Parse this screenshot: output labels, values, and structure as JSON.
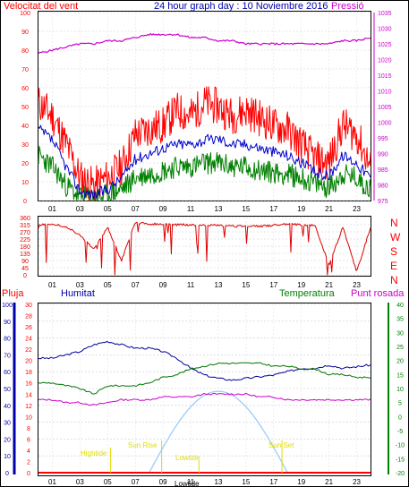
{
  "header": {
    "wind_label": "Velocitat del vent",
    "title": "24 hour graph day : 10 Noviembre 2016",
    "pressure_label": "Pressió"
  },
  "legend2": {
    "rain": "Pluja",
    "humidity": "Humitat",
    "temperature": "Temperatura",
    "dewpoint": "Punt rosada"
  },
  "compass": [
    "N",
    "W",
    "S",
    "E",
    "N"
  ],
  "colors": {
    "wind_max": "#ff0000",
    "wind_avg": "#0000cc",
    "wind_min": "#008000",
    "pressure": "#cc00cc",
    "direction": "#dd0000",
    "humidity": "#000099",
    "temperature": "#007700",
    "dewpoint": "#cc00cc",
    "sun_curve": "#99ccff",
    "tide": "#dddd00",
    "axis_green": "#008000",
    "axis_blue": "#0000aa"
  },
  "time_ticks": [
    "01",
    "03",
    "05",
    "07",
    "09",
    "11",
    "13",
    "15",
    "17",
    "19",
    "21",
    "23"
  ],
  "tide_labels": {
    "high_tide": "Hightide",
    "sun_rise": "Sun Rise",
    "low_tide_1": "Lowtide",
    "low_tide_2": "Lowtide",
    "sun_set": "Sun Set"
  },
  "chart_data": [
    {
      "type": "line",
      "title": "24 hour graph day : 10 Noviembre 2016",
      "x_hours": [
        0,
        1,
        2,
        3,
        4,
        5,
        6,
        7,
        8,
        9,
        10,
        11,
        12,
        13,
        14,
        15,
        16,
        17,
        18,
        19,
        20,
        21,
        22,
        23,
        24
      ],
      "left_axis": {
        "ticks": [
          0,
          5,
          10,
          15,
          20,
          25,
          30,
          35,
          40,
          45,
          50,
          55,
          60,
          65,
          70,
          75,
          80,
          85,
          90,
          95,
          100
        ],
        "ylim": [
          0,
          100
        ]
      },
      "right_axis": {
        "ticks": [
          975,
          980,
          985,
          990,
          995,
          1000,
          1005,
          1010,
          1015,
          1020,
          1025,
          1030,
          1035
        ],
        "ylim": [
          975,
          1035
        ]
      },
      "series": [
        {
          "name": "Velocitat del vent",
          "axis": "left",
          "values": [
            52,
            45,
            30,
            12,
            8,
            12,
            18,
            35,
            38,
            40,
            48,
            45,
            52,
            50,
            45,
            48,
            44,
            40,
            38,
            30,
            22,
            20,
            40,
            35,
            18
          ]
        },
        {
          "name": "avg",
          "axis": "left",
          "values": [
            38,
            32,
            18,
            5,
            3,
            6,
            12,
            22,
            25,
            28,
            30,
            30,
            32,
            33,
            30,
            30,
            28,
            26,
            24,
            20,
            15,
            13,
            24,
            20,
            12
          ]
        },
        {
          "name": "min",
          "axis": "left",
          "values": [
            24,
            18,
            8,
            2,
            1,
            3,
            6,
            12,
            14,
            16,
            18,
            18,
            20,
            20,
            18,
            18,
            16,
            15,
            14,
            12,
            9,
            7,
            14,
            12,
            6
          ]
        },
        {
          "name": "Pressió",
          "axis": "right",
          "values": [
            1022,
            1023,
            1024,
            1025,
            1025,
            1026,
            1026,
            1027,
            1028,
            1028,
            1028,
            1027,
            1027,
            1026,
            1026,
            1025,
            1025,
            1025,
            1025,
            1025,
            1025,
            1025,
            1026,
            1026,
            1027
          ]
        }
      ]
    },
    {
      "type": "line",
      "ylim": [
        0,
        360
      ],
      "ticks": [
        0,
        45,
        90,
        135,
        180,
        225,
        270,
        315,
        360
      ],
      "series": [
        {
          "name": "direction",
          "x_hours": [
            0,
            1,
            2,
            3,
            4,
            5,
            6,
            7,
            8,
            9,
            10,
            11,
            12,
            13,
            14,
            15,
            16,
            17,
            18,
            19,
            20,
            21,
            22,
            23,
            24
          ],
          "values": [
            315,
            320,
            300,
            250,
            160,
            300,
            90,
            330,
            320,
            320,
            315,
            315,
            315,
            310,
            305,
            305,
            305,
            310,
            320,
            315,
            310,
            60,
            300,
            20,
            300
          ]
        }
      ]
    },
    {
      "type": "line",
      "humidity_axis": {
        "ticks": [
          0,
          10,
          20,
          30,
          40,
          50,
          60,
          70,
          80,
          90,
          100
        ],
        "ylim": [
          0,
          100
        ]
      },
      "rain_axis": {
        "ticks": [
          0,
          2,
          4,
          6,
          8,
          10,
          12,
          14,
          16,
          18,
          20,
          22,
          24,
          26,
          28,
          30
        ],
        "ylim": [
          0,
          30
        ]
      },
      "temperature_axis": {
        "ticks": [
          -20,
          -15,
          -10,
          -5,
          0,
          5,
          10,
          15,
          20,
          25,
          30,
          35,
          40
        ],
        "ylim": [
          -20,
          40
        ]
      },
      "series": [
        {
          "name": "Humitat",
          "axis": "humidity",
          "x_hours": [
            0,
            1,
            2,
            3,
            4,
            5,
            6,
            7,
            8,
            9,
            10,
            11,
            12,
            13,
            14,
            15,
            16,
            17,
            18,
            19,
            20,
            21,
            22,
            23,
            24
          ],
          "values": [
            68,
            68,
            70,
            72,
            76,
            78,
            76,
            74,
            74,
            72,
            68,
            62,
            58,
            56,
            55,
            56,
            57,
            58,
            60,
            62,
            62,
            64,
            62,
            63,
            64
          ]
        },
        {
          "name": "Temperatura",
          "axis": "temperature",
          "x_hours": [
            0,
            1,
            2,
            3,
            4,
            5,
            6,
            7,
            8,
            9,
            10,
            11,
            12,
            13,
            14,
            15,
            16,
            17,
            18,
            19,
            20,
            21,
            22,
            23,
            24
          ],
          "values": [
            12,
            12,
            11,
            10,
            8,
            11,
            11,
            11,
            12,
            14,
            15,
            17,
            18,
            19,
            19,
            19,
            19,
            18,
            18,
            17,
            17,
            15,
            15,
            14,
            14
          ]
        },
        {
          "name": "Punt rosada",
          "axis": "temperature",
          "x_hours": [
            0,
            1,
            2,
            3,
            4,
            5,
            6,
            7,
            8,
            9,
            10,
            11,
            12,
            13,
            14,
            15,
            16,
            17,
            18,
            19,
            20,
            21,
            22,
            23,
            24
          ],
          "values": [
            6,
            6,
            5,
            5,
            4,
            5,
            6,
            6,
            6,
            7,
            7,
            7,
            8,
            8,
            8,
            8,
            7,
            7,
            6,
            6,
            6,
            6,
            6,
            6,
            6
          ]
        },
        {
          "name": "sun",
          "axis": "temperature",
          "x_hours": [
            8,
            9,
            10,
            11,
            12,
            13,
            14,
            15,
            16,
            17,
            18
          ],
          "values": [
            -20,
            -11,
            -3,
            3,
            7,
            9,
            7,
            3,
            -3,
            -11,
            -20
          ]
        },
        {
          "name": "Pluja",
          "axis": "rain",
          "values": [
            0
          ]
        }
      ]
    }
  ]
}
